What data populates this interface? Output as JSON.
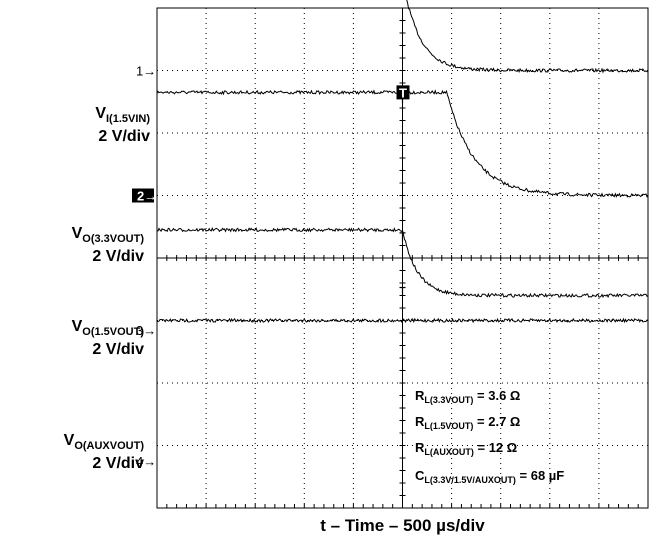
{
  "chart_data": {
    "type": "line",
    "title": "",
    "xlabel": "t – Time – 500 µs/div",
    "time_per_div_us": 500,
    "x_divisions": 10,
    "y_divisions": 8,
    "volts_per_div": 2,
    "grid": true,
    "channels": [
      {
        "marker": "1",
        "label_main": "V",
        "label_sub": "I(1.5VIN)",
        "scale": "2 V/div",
        "marker_div": 3.0,
        "level_div": 4.45,
        "fall_start_div": 5.0,
        "final_div": 3.0,
        "tau_div": 0.35
      },
      {
        "marker": "2",
        "label_main": "V",
        "label_sub": "O(3.3VOUT)",
        "scale": "2 V/div",
        "marker_div": 1.0,
        "level_div": 2.65,
        "fall_start_div": 5.9,
        "final_div": 1.0,
        "tau_div": 0.55
      },
      {
        "marker": "3",
        "label_main": "V",
        "label_sub": "O(1.5VOUT)",
        "scale": "2 V/div",
        "marker_div": -1.15,
        "level_div": 0.45,
        "fall_start_div": 5.0,
        "final_div": -0.6,
        "tau_div": 0.3
      },
      {
        "marker": "4",
        "label_main": "V",
        "label_sub": "O(AUXVOUT)",
        "scale": "2 V/div",
        "marker_div": -3.25,
        "level_div": -1.0,
        "fall_start_div": null,
        "final_div": -1.0,
        "tau_div": 0
      }
    ],
    "trigger_marker": "T",
    "trigger_time_div": 5.0,
    "conditions": [
      {
        "main": "R",
        "sub": "L(3.3VOUT)",
        "rest": " = 3.6 Ω"
      },
      {
        "main": "R",
        "sub": "L(1.5VOUT)",
        "rest": " = 2.7 Ω"
      },
      {
        "main": "R",
        "sub": "L(AUXOUT)",
        "rest": " = 12 Ω"
      },
      {
        "main": "C",
        "sub": "L(3.3V/1.5V/AUXOUT)",
        "rest": " = 68 µF"
      }
    ]
  }
}
